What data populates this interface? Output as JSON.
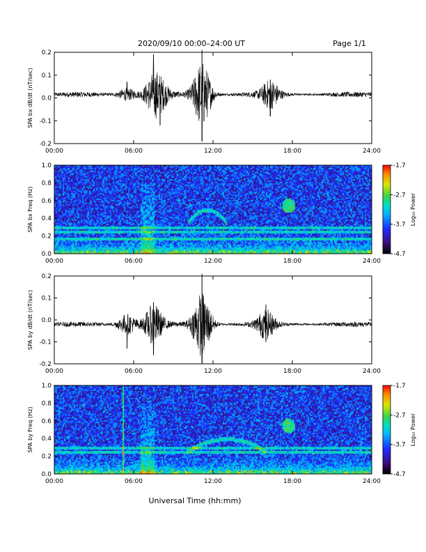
{
  "header": {
    "title": "2020/09/10  00:00–24:00 UT",
    "page": "Page 1/1"
  },
  "xlabel": "Universal Time (hh:mm)",
  "colors": {
    "waveform": "#000000",
    "colormap": [
      "#000000",
      "#3b0d7a",
      "#1c2cff",
      "#00b6ff",
      "#00e0c0",
      "#3cd34a",
      "#d6e600",
      "#ff8a00",
      "#ff0000"
    ]
  },
  "chart_data": [
    {
      "type": "line",
      "ylabel": "SPA bx dB/dt (nT/sec)",
      "xlim": [
        "00:00",
        "24:00"
      ],
      "ylim": [
        -0.2,
        0.2
      ],
      "x_ticks": [
        "00:00",
        "06:00",
        "12:00",
        "18:00",
        "24:00"
      ],
      "y_ticks": [
        "0.2",
        "0.1",
        "0.0",
        "-0.1",
        "-0.2"
      ],
      "baseline": 0.015,
      "activity_bursts": [
        {
          "center": "05:30",
          "peak": 0.07
        },
        {
          "center": "07:30",
          "peak": 0.19
        },
        {
          "center": "08:00",
          "peak": -0.12
        },
        {
          "center": "11:10",
          "peak": 0.21
        },
        {
          "center": "11:10",
          "peak": -0.19
        },
        {
          "center": "16:20",
          "peak": 0.08
        },
        {
          "center": "16:20",
          "peak": -0.08
        }
      ]
    },
    {
      "type": "heatmap",
      "ylabel": "SPA bx Freq (Hz)",
      "xlim": [
        "00:00",
        "24:00"
      ],
      "ylim": [
        0.0,
        1.0
      ],
      "x_ticks": [
        "00:00",
        "06:00",
        "12:00",
        "18:00",
        "24:00"
      ],
      "y_ticks": [
        "1.0",
        "0.8",
        "0.6",
        "0.4",
        "0.2",
        "0.0"
      ],
      "colorbar": {
        "label": "Log₁₀ Power",
        "ticks": [
          "-1.7",
          "-2.7",
          "-3.7",
          "-4.7"
        ],
        "range": [
          -4.7,
          -1.7
        ]
      },
      "features": [
        {
          "type": "line",
          "freq": 0.3
        },
        {
          "type": "line",
          "freq": 0.25
        },
        {
          "type": "line",
          "freq": 0.17
        },
        {
          "type": "burst",
          "time": "07:00",
          "freq_range": [
            0.0,
            0.8
          ]
        },
        {
          "type": "arc",
          "time_range": [
            "10:00",
            "13:00"
          ],
          "freq": 0.5
        },
        {
          "type": "blob",
          "time": "17:40",
          "freq": 0.55
        }
      ]
    },
    {
      "type": "line",
      "ylabel": "SPA by dB/dt (nT/sec)",
      "xlim": [
        "00:00",
        "24:00"
      ],
      "ylim": [
        -0.2,
        0.2
      ],
      "x_ticks": [
        "00:00",
        "06:00",
        "12:00",
        "18:00",
        "24:00"
      ],
      "y_ticks": [
        "0.2",
        "0.1",
        "0.0",
        "-0.1",
        "-0.2"
      ],
      "baseline": -0.02,
      "activity_bursts": [
        {
          "center": "05:30",
          "peak": -0.13
        },
        {
          "center": "07:30",
          "peak": 0.08
        },
        {
          "center": "07:30",
          "peak": -0.16
        },
        {
          "center": "11:10",
          "peak": 0.21
        },
        {
          "center": "11:10",
          "peak": -0.2
        },
        {
          "center": "16:00",
          "peak": 0.07
        },
        {
          "center": "16:00",
          "peak": -0.1
        }
      ]
    },
    {
      "type": "heatmap",
      "ylabel": "SPA by Freq (Hz)",
      "xlim": [
        "00:00",
        "24:00"
      ],
      "ylim": [
        0.0,
        1.0
      ],
      "x_ticks": [
        "00:00",
        "06:00",
        "12:00",
        "18:00",
        "24:00"
      ],
      "y_ticks": [
        "1.0",
        "0.8",
        "0.6",
        "0.4",
        "0.2",
        "0.0"
      ],
      "colorbar": {
        "label": "Log₁₀ Power",
        "ticks": [
          "-1.7",
          "-2.7",
          "-3.7",
          "-4.7"
        ],
        "range": [
          -4.7,
          -1.7
        ]
      },
      "features": [
        {
          "type": "line",
          "freq": 0.3
        },
        {
          "type": "line",
          "freq": 0.25
        },
        {
          "type": "vertical",
          "time": "05:10"
        },
        {
          "type": "burst",
          "time": "07:00",
          "freq_range": [
            0.0,
            0.8
          ]
        },
        {
          "type": "arc",
          "time_range": [
            "10:00",
            "16:00"
          ],
          "freq": 0.4
        },
        {
          "type": "blob",
          "time": "17:40",
          "freq": 0.55
        }
      ]
    }
  ]
}
